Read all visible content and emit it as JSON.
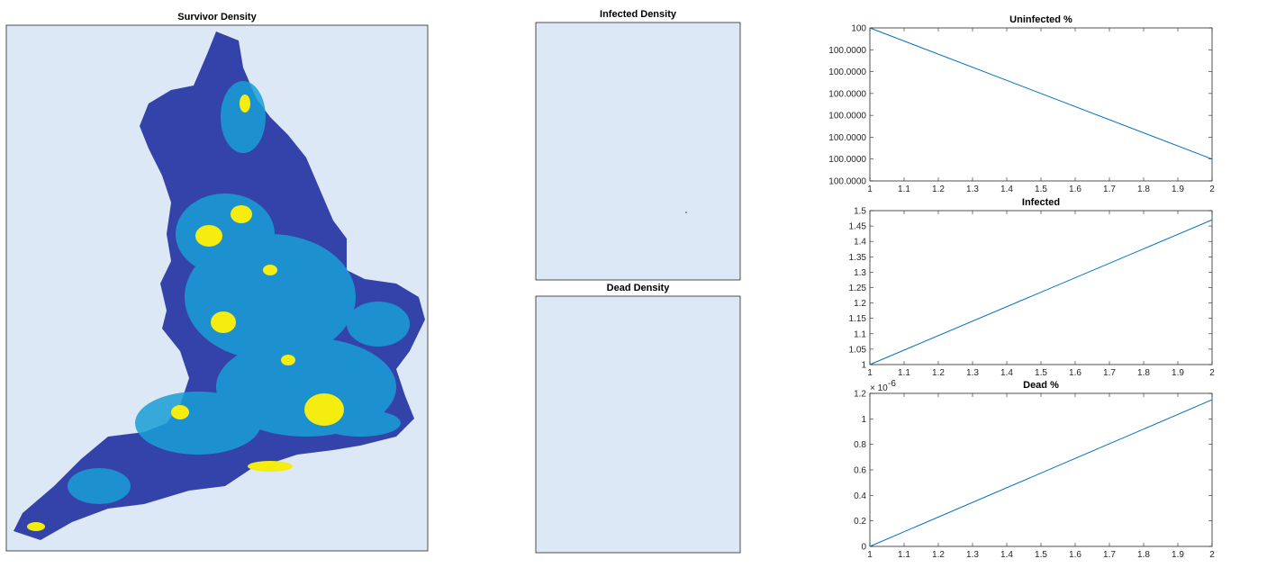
{
  "chart_data": [
    {
      "type": "image",
      "title": "Survivor Density"
    },
    {
      "type": "image",
      "title": "Infected Density"
    },
    {
      "type": "image",
      "title": "Dead Density"
    },
    {
      "type": "line",
      "title": "Uninfected %",
      "x": [
        1,
        2
      ],
      "values": [
        100,
        99.9999994
      ],
      "color": "#0072bd",
      "xlim": [
        1,
        2
      ],
      "xticks": [
        1,
        1.1,
        1.2,
        1.3,
        1.4,
        1.5,
        1.6,
        1.7,
        1.8,
        1.9,
        2
      ],
      "ylim": [
        99.9999993,
        100
      ],
      "yticks": [
        {
          "value": 99.9999993,
          "label": "100.0000"
        },
        {
          "value": 99.9999994,
          "label": "100.0000"
        },
        {
          "value": 99.9999995,
          "label": "100.0000"
        },
        {
          "value": 99.9999996,
          "label": "100.0000"
        },
        {
          "value": 99.9999997,
          "label": "100.0000"
        },
        {
          "value": 99.9999998,
          "label": "100.0000"
        },
        {
          "value": 99.9999999,
          "label": "100.0000"
        },
        100
      ]
    },
    {
      "type": "line",
      "title": "Infected",
      "x": [
        1,
        2
      ],
      "values": [
        1,
        1.47
      ],
      "color": "#0072bd",
      "xlim": [
        1,
        2
      ],
      "xticks": [
        1,
        1.1,
        1.2,
        1.3,
        1.4,
        1.5,
        1.6,
        1.7,
        1.8,
        1.9,
        2
      ],
      "ylim": [
        1,
        1.5
      ],
      "yticks": [
        1,
        1.05,
        1.1,
        1.15,
        1.2,
        1.25,
        1.3,
        1.35,
        1.4,
        1.45,
        1.5
      ]
    },
    {
      "type": "line",
      "title": "Dead %",
      "x": [
        1,
        2
      ],
      "values": [
        0,
        1.15e-06
      ],
      "color": "#0072bd",
      "xlim": [
        1,
        2
      ],
      "xticks": [
        1,
        1.1,
        1.2,
        1.3,
        1.4,
        1.5,
        1.6,
        1.7,
        1.8,
        1.9,
        2
      ],
      "ylim": [
        0,
        1.2e-06
      ],
      "yticks": [
        0,
        {
          "value": 2e-07,
          "label": "0.2"
        },
        {
          "value": 4e-07,
          "label": "0.4"
        },
        {
          "value": 6e-07,
          "label": "0.6"
        },
        {
          "value": 8e-07,
          "label": "0.8"
        },
        {
          "value": 1e-06,
          "label": "1"
        },
        {
          "value": 1.2e-06,
          "label": "1.2"
        }
      ],
      "y_exponent_base": "× 10",
      "y_exponent_power": "-6"
    }
  ]
}
